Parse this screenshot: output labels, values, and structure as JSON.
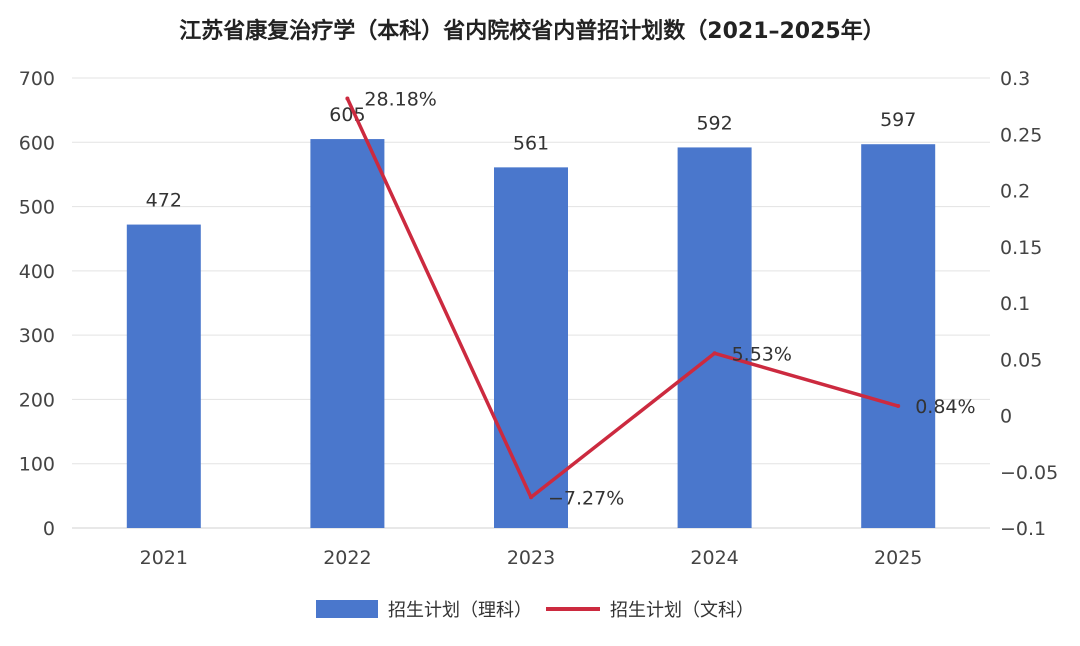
{
  "chart_data": {
    "type": "bar",
    "title": "江苏省康复治疗学（本科）省内院校省内普招计划数（2021–2025年）",
    "categories": [
      "2021",
      "2022",
      "2023",
      "2024",
      "2025"
    ],
    "series": [
      {
        "name": "招生计划（理科）",
        "type": "bar",
        "axis": "left",
        "color": "#4a77cc",
        "values": [
          472,
          605,
          561,
          592,
          597
        ],
        "labels": [
          "472",
          "605",
          "561",
          "592",
          "597"
        ]
      },
      {
        "name": "招生计划（文科）",
        "type": "line",
        "axis": "right",
        "color": "#cc2a3f",
        "values": [
          null,
          0.2818,
          -0.0727,
          0.0553,
          0.0084
        ],
        "labels": [
          "",
          "28.18%",
          "-7.27%",
          "5.53%",
          "0.84%"
        ]
      }
    ],
    "y_left": {
      "min": 0,
      "max": 700,
      "ticks": [
        "0",
        "100",
        "200",
        "300",
        "400",
        "500",
        "600",
        "700"
      ]
    },
    "y_right": {
      "min": -0.1,
      "max": 0.3,
      "ticks": [
        "-0.1",
        "-0.05",
        "0",
        "0.05",
        "0.1",
        "0.15",
        "0.2",
        "0.25",
        "0.3"
      ]
    },
    "grid": true,
    "legend_position": "bottom"
  }
}
